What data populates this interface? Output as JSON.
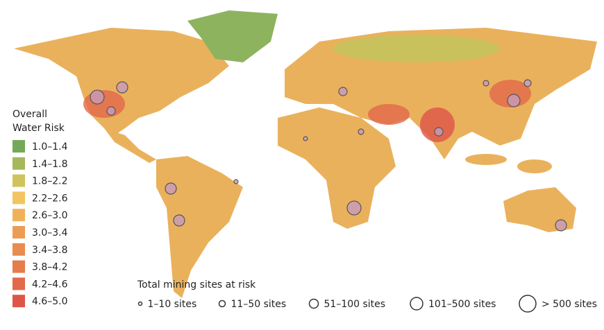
{
  "legend": {
    "title_lines": [
      "Overall",
      "Water Risk"
    ],
    "items": [
      {
        "label": "1.0–1.4",
        "color": "#74a95a"
      },
      {
        "label": "1.4–1.8",
        "color": "#a6b85c"
      },
      {
        "label": "1.8–2.2",
        "color": "#cfc35d"
      },
      {
        "label": "2.2–2.6",
        "color": "#f2c560"
      },
      {
        "label": "2.6–3.0",
        "color": "#efb25a"
      },
      {
        "label": "3.0–3.4",
        "color": "#eb9d54"
      },
      {
        "label": "3.4–3.8",
        "color": "#e88c4f"
      },
      {
        "label": "3.8–4.2",
        "color": "#e47c4b"
      },
      {
        "label": "4.2–4.6",
        "color": "#e2694a"
      },
      {
        "label": "4.6–5.0",
        "color": "#de5548"
      }
    ]
  },
  "sites_legend": {
    "title": "Total mining sites at risk",
    "items": [
      "1–10 sites",
      "11–50 sites",
      "51–100 sites",
      "101–500 sites",
      "> 500 sites"
    ]
  }
}
